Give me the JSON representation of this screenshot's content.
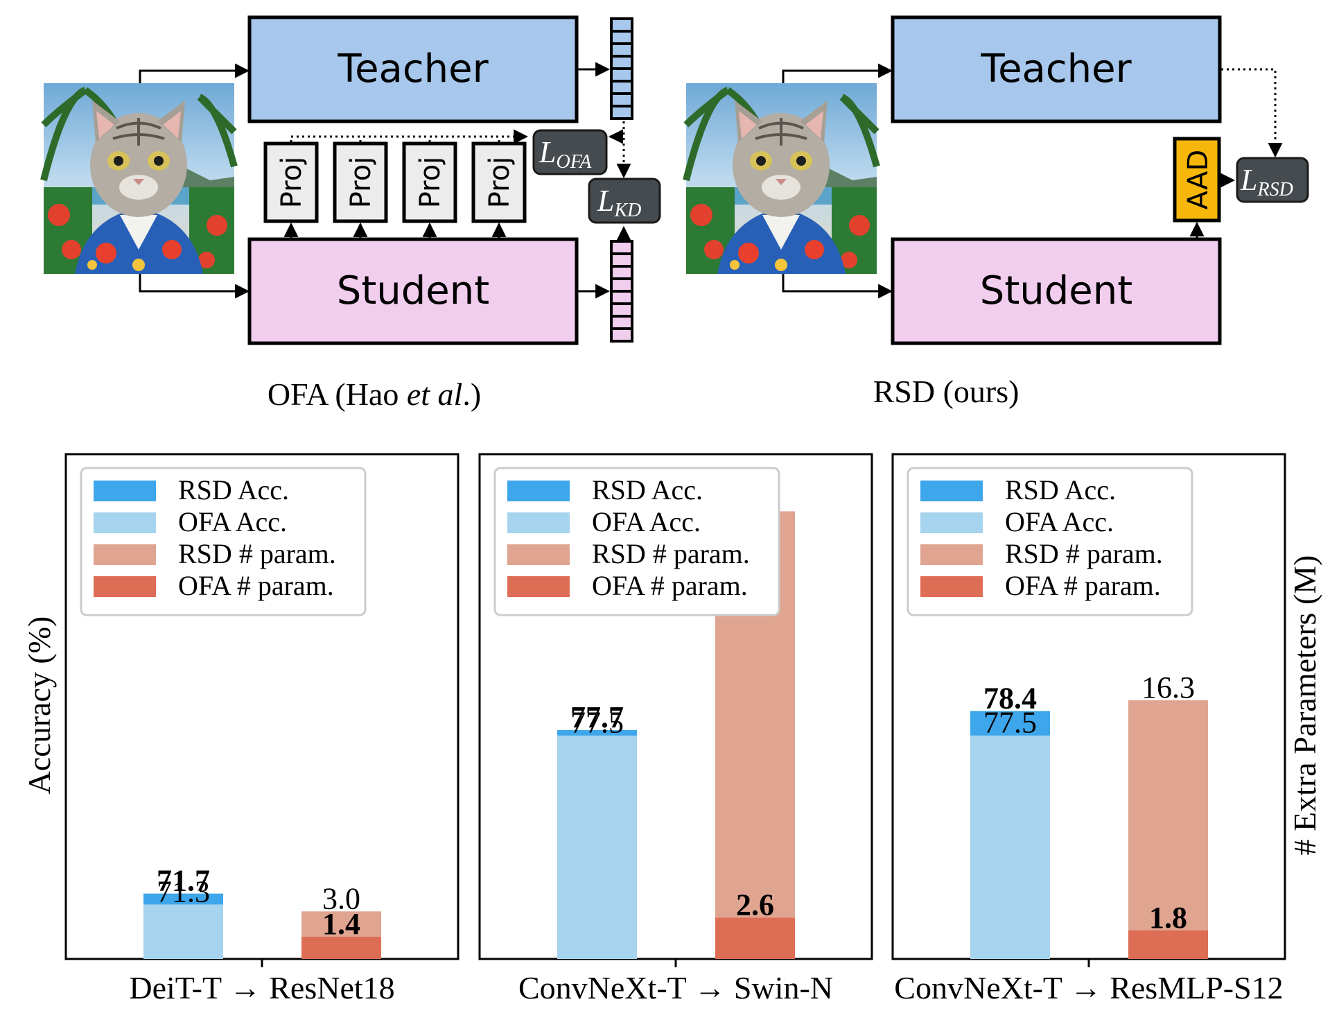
{
  "colors": {
    "teacher": "#a7c8ec",
    "student": "#f1cdee",
    "aad": "#f7b70a",
    "loss_box": "#454b4f",
    "proj": "#ececec",
    "rsd_acc": "#3ea6eb",
    "ofa_acc": "#a6d3ee",
    "rsd_param": "#e0a591",
    "ofa_param": "#de6d56"
  },
  "diagram": {
    "ofa": {
      "teacher_label": "Teacher",
      "student_label": "Student",
      "proj_labels": [
        "Proj",
        "Proj",
        "Proj",
        "Proj"
      ],
      "loss_ofa": {
        "main": "L",
        "sub": "OFA"
      },
      "loss_kd": {
        "main": "L",
        "sub": "KD"
      },
      "caption_pre": "OFA (Hao ",
      "caption_em": "et al",
      "caption_post": ".)"
    },
    "rsd": {
      "teacher_label": "Teacher",
      "student_label": "Student",
      "aad_label": "AAD",
      "loss_rsd": {
        "main": "L",
        "sub": "RSD"
      },
      "caption": "RSD (ours)"
    },
    "cat_image": "cat-in-hawaiian-shirt-icon"
  },
  "charts_common": {
    "ylabel_left": "Accuracy (%)",
    "ylabel_right": "# Extra Parameters (M)",
    "legend": [
      "RSD Acc.",
      "OFA Acc.",
      "RSD # param.",
      "OFA # param."
    ]
  },
  "chart_data": [
    {
      "type": "bar",
      "xlabel": "DeiT-T → ResNet18",
      "accuracy": {
        "rsd": 71.7,
        "ofa": 71.3,
        "rsd_label": "71.7",
        "ofa_label": "71.3"
      },
      "params": {
        "rsd": 1.4,
        "ofa": 3.0,
        "rsd_label": "1.4",
        "ofa_label": "3.0"
      }
    },
    {
      "type": "bar",
      "xlabel": "ConvNeXt-T → Swin-N",
      "accuracy": {
        "rsd": 77.7,
        "ofa": 77.5,
        "rsd_label": "77.7",
        "ofa_label": "77.5"
      },
      "params": {
        "rsd": 2.6,
        "ofa": 28.2,
        "rsd_label": "2.6",
        "ofa_label": "28.2"
      }
    },
    {
      "type": "bar",
      "xlabel": "ConvNeXt-T → ResMLP-S12",
      "accuracy": {
        "rsd": 78.4,
        "ofa": 77.5,
        "rsd_label": "78.4",
        "ofa_label": "77.5"
      },
      "params": {
        "rsd": 1.8,
        "ofa": 16.3,
        "rsd_label": "1.8",
        "ofa_label": "16.3"
      }
    }
  ]
}
